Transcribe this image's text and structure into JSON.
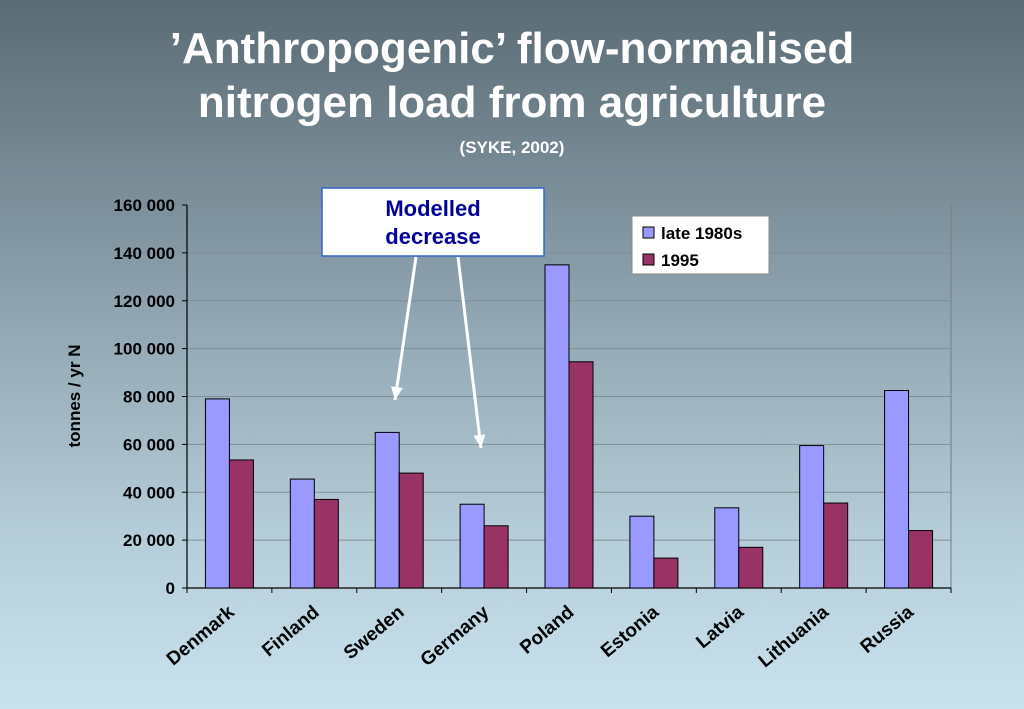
{
  "slide": {
    "title_line1": "’Anthropogenic’ flow-normalised",
    "title_line2": "nitrogen load from agriculture",
    "subtitle": "(SYKE, 2002)"
  },
  "callout": {
    "line1": "Modelled",
    "line2": "decrease"
  },
  "colors": {
    "series1": "#9999ff",
    "series2": "#993366",
    "grid": "#7f8f99",
    "plot_border": "#6f7f88",
    "callout_text": "#000099",
    "arrow": "#ffffff"
  },
  "chart_data": {
    "type": "bar",
    "title": "’Anthropogenic’ flow-normalised nitrogen load from agriculture",
    "subtitle": "(SYKE, 2002)",
    "xlabel": "",
    "ylabel": "tonnes / yr N",
    "ylim": [
      0,
      160000
    ],
    "yticks": [
      0,
      20000,
      40000,
      60000,
      80000,
      100000,
      120000,
      140000,
      160000
    ],
    "ytick_labels": [
      "0",
      "20 000",
      "40 000",
      "60 000",
      "80 000",
      "100 000",
      "120 000",
      "140 000",
      "160 000"
    ],
    "grid": true,
    "legend_position": "top-right",
    "categories": [
      "Denmark",
      "Finland",
      "Sweden",
      "Germany",
      "Poland",
      "Estonia",
      "Latvia",
      "Lithuania",
      "Russia"
    ],
    "series": [
      {
        "name": "late 1980s",
        "values": [
          79000,
          45500,
          65000,
          35000,
          135000,
          30000,
          33500,
          59500,
          82500
        ]
      },
      {
        "name": "1995",
        "values": [
          53500,
          37000,
          48000,
          26000,
          94500,
          12500,
          17000,
          35500,
          24000
        ]
      }
    ]
  }
}
